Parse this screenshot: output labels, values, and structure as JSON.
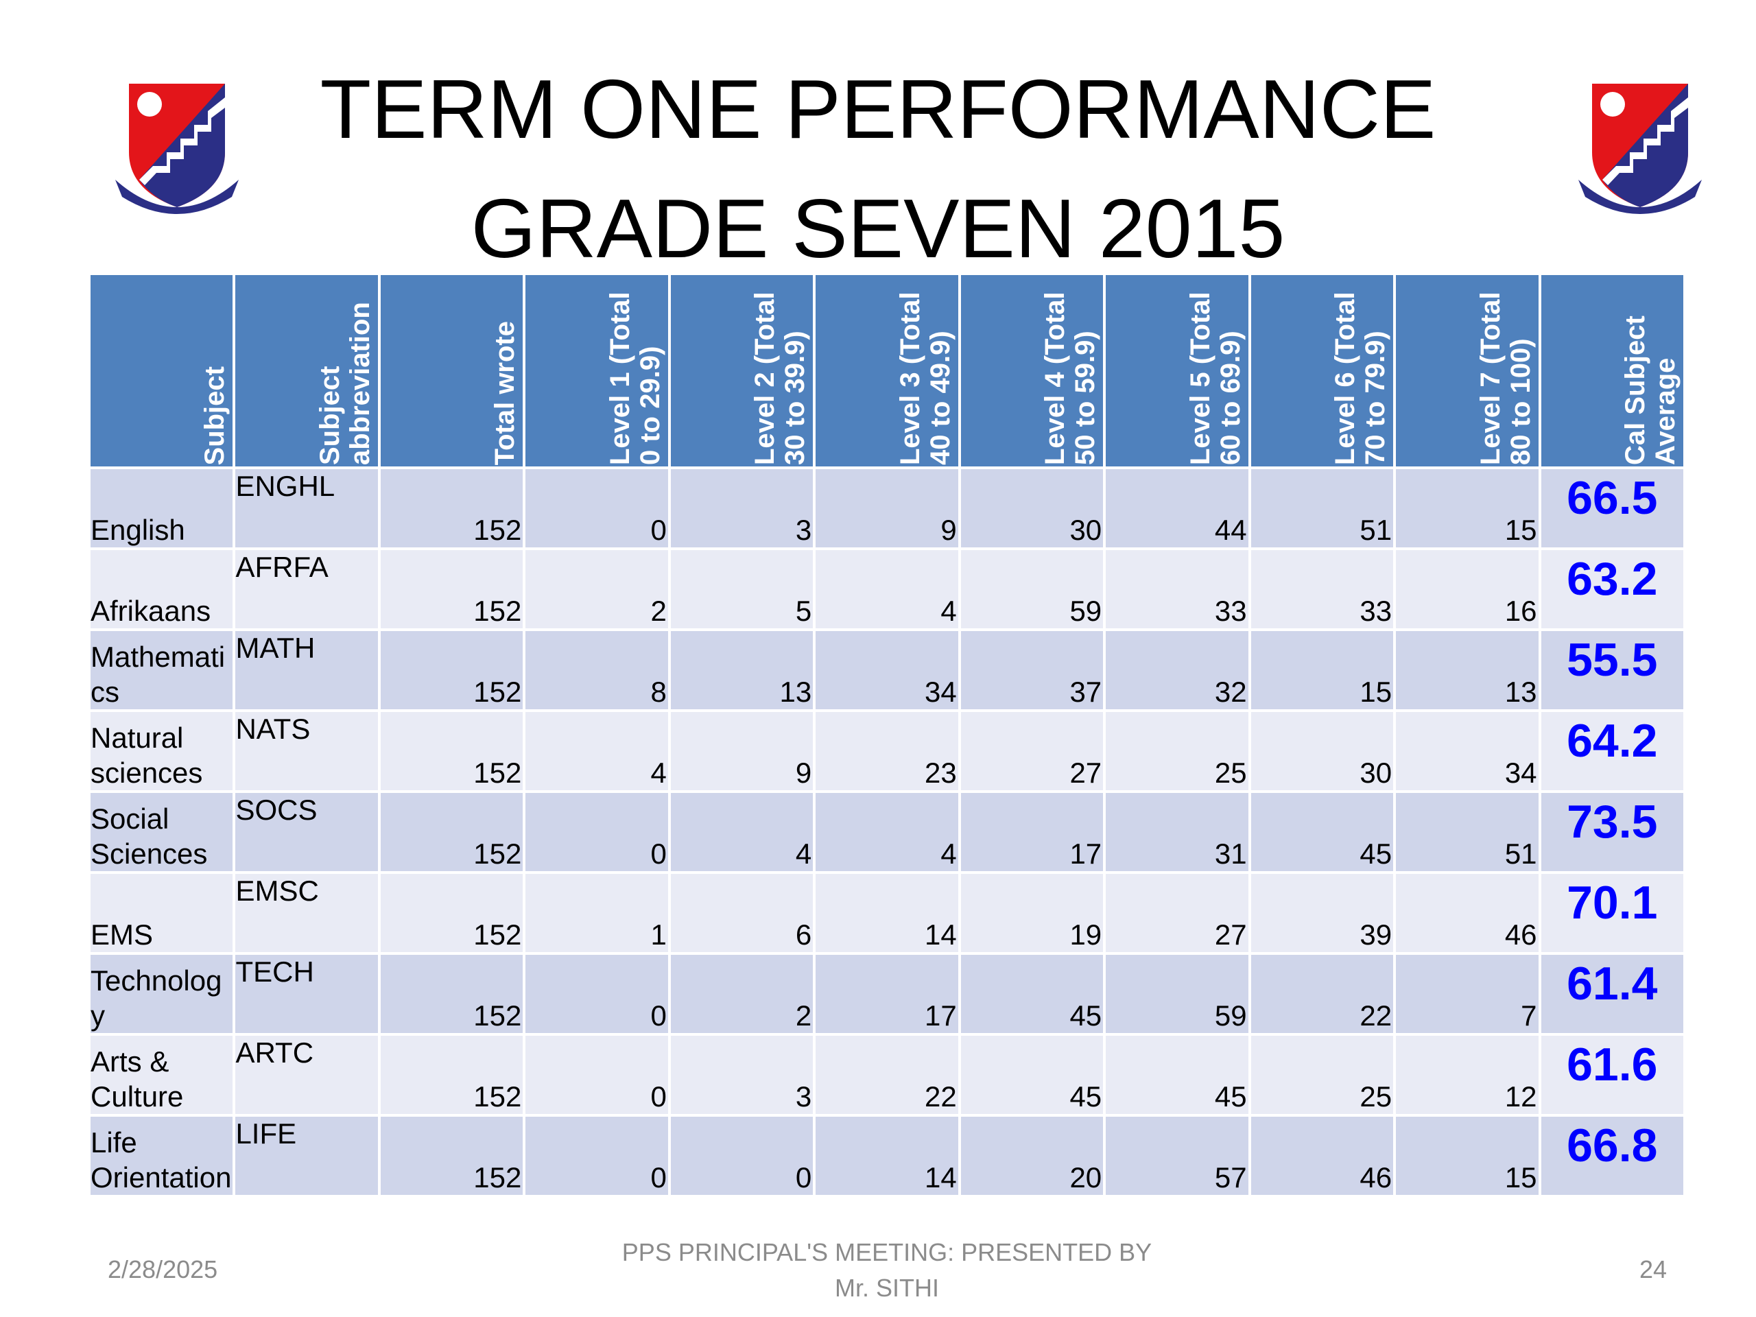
{
  "title": {
    "line1": "TERM  ONE  PERFORMANCE",
    "line2": "GRADE SEVEN  2015"
  },
  "table": {
    "header": [
      "Subject",
      "Subject abbreviation",
      "Total wrote",
      "Level 1 (Total 0 to 29.9)",
      "Level 2 (Total 30 to 39.9)",
      "Level 3 (Total 40 to 49.9)",
      "Level 4 (Total 50 to 59.9)",
      "Level 5 (Total 60 to 69.9)",
      "Level 6 (Total 70 to 79.9)",
      "Level 7 (Total 80 to 100)",
      "Cal Subject Average"
    ],
    "rows": [
      [
        "English",
        "ENGHL",
        152,
        0,
        3,
        9,
        30,
        44,
        51,
        15,
        66.5
      ],
      [
        "Afrikaans",
        "AFRFA",
        152,
        2,
        5,
        4,
        59,
        33,
        33,
        16,
        63.2
      ],
      [
        "Mathematics",
        "MATH",
        152,
        8,
        13,
        34,
        37,
        32,
        15,
        13,
        55.5
      ],
      [
        "Natural sciences",
        "NATS",
        152,
        4,
        9,
        23,
        27,
        25,
        30,
        34,
        64.2
      ],
      [
        "Social Sciences",
        "SOCS",
        152,
        0,
        4,
        4,
        17,
        31,
        45,
        51,
        73.5
      ],
      [
        "EMS",
        "EMSC",
        152,
        1,
        6,
        14,
        19,
        27,
        39,
        46,
        70.1
      ],
      [
        "Technology",
        "TECH",
        152,
        0,
        2,
        17,
        45,
        59,
        22,
        7,
        61.4
      ],
      [
        "Arts & Culture",
        "ARTC",
        152,
        0,
        3,
        22,
        45,
        45,
        25,
        12,
        61.6
      ],
      [
        "Life Orientation",
        "LIFE",
        152,
        0,
        0,
        14,
        20,
        57,
        46,
        15,
        66.8
      ]
    ]
  },
  "footer": {
    "date": "2/28/2025",
    "presenter": "PPS  PRINCIPAL'S MEETING: PRESENTED  BY Mr. SITHI",
    "page": 24
  }
}
